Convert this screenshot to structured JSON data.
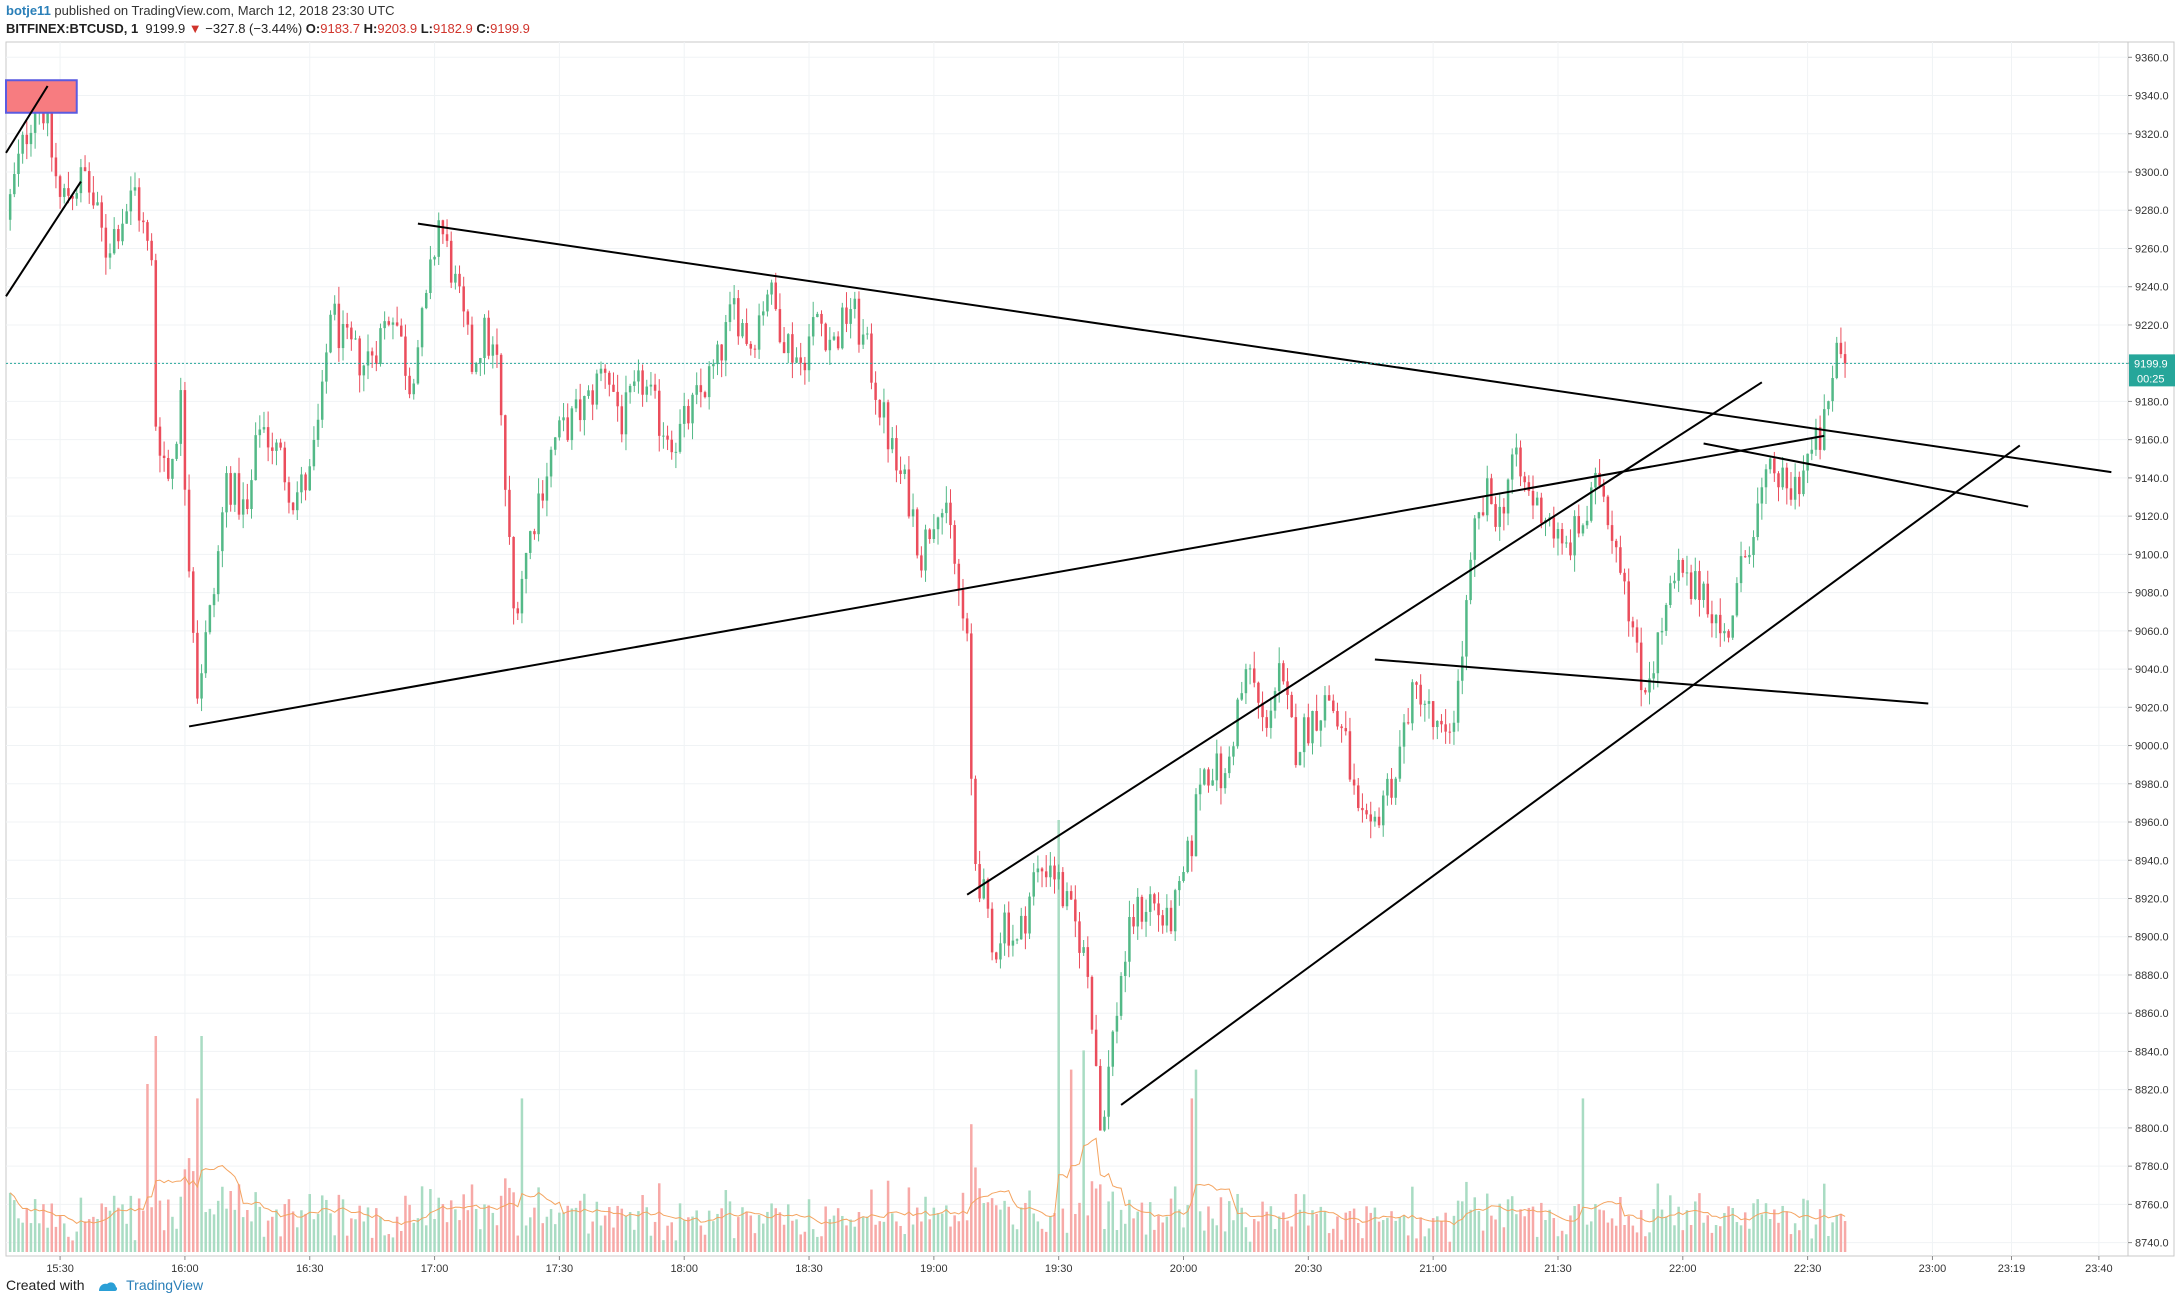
{
  "header": {
    "user": "botje11",
    "published_text": "published on TradingView.com, March 12, 2018 23:30 UTC",
    "symbol": "BITFINEX:BTCUSD, 1",
    "last": "9199.9",
    "change_arrow": "▼",
    "change": "−327.8 (−3.44%)",
    "o_label": "O:",
    "o_value": "9183.7",
    "h_label": "H:",
    "h_value": "9203.9",
    "l_label": "L:",
    "l_value": "9182.9",
    "c_label": "C:",
    "c_value": "9199.9"
  },
  "footer": {
    "created_with": "Created with",
    "brand": "TradingView",
    "logo_icon": "tradingview-logo-icon"
  },
  "colors": {
    "up": "#53b987",
    "down": "#eb4d5c",
    "vol_up": "#a9dcc3",
    "vol_down": "#f7a9a7",
    "ma_line": "#f4a460",
    "last_price_bg": "#26a69a",
    "drawing": "#000000",
    "zone_fill": "#f77c80",
    "zone_border": "#5b5be0"
  },
  "chart_data": {
    "type": "candlestick",
    "interval": "1 minute",
    "y_ticks": [
      8740,
      8760,
      8780,
      8800,
      8820,
      8840,
      8860,
      8880,
      8900,
      8920,
      8940,
      8960,
      8980,
      9000,
      9020,
      9040,
      9060,
      9080,
      9100,
      9120,
      9140,
      9160,
      9180,
      9200,
      9220,
      9240,
      9260,
      9280,
      9300,
      9320,
      9340,
      9360
    ],
    "y_tick_labels": [
      "8740.0",
      "8760.0",
      "8780.0",
      "8800.0",
      "8820.0",
      "8840.0",
      "8860.0",
      "8880.0",
      "8900.0",
      "8920.0",
      "8940.0",
      "8960.0",
      "8980.0",
      "9000.0",
      "9020.0",
      "9040.0",
      "9060.0",
      "9080.0",
      "9100.0",
      "9120.0",
      "9140.0",
      "9160.0",
      "9180.0",
      "9200.0",
      "9220.0",
      "9240.0",
      "9260.0",
      "9280.0",
      "9300.0",
      "9320.0",
      "9340.0",
      "9360.0"
    ],
    "ylim": [
      8733,
      9368
    ],
    "x_start_minute": 917,
    "x_end_minute": 1427,
    "x_ticks": [
      {
        "label": "15:30",
        "minute": 930
      },
      {
        "label": "16:00",
        "minute": 960
      },
      {
        "label": "16:30",
        "minute": 990
      },
      {
        "label": "17:00",
        "minute": 1020
      },
      {
        "label": "17:30",
        "minute": 1050
      },
      {
        "label": "18:00",
        "minute": 1080
      },
      {
        "label": "18:30",
        "minute": 1110
      },
      {
        "label": "19:00",
        "minute": 1140
      },
      {
        "label": "19:30",
        "minute": 1170
      },
      {
        "label": "20:00",
        "minute": 1200
      },
      {
        "label": "20:30",
        "minute": 1230
      },
      {
        "label": "21:00",
        "minute": 1260
      },
      {
        "label": "21:30",
        "minute": 1290
      },
      {
        "label": "22:00",
        "minute": 1320
      },
      {
        "label": "22:30",
        "minute": 1350
      },
      {
        "label": "23:00",
        "minute": 1380
      },
      {
        "label": "23:19",
        "minute": 1399
      },
      {
        "label": "23:40",
        "minute": 1420
      }
    ],
    "last_price": 9199.9,
    "last_price_label": "9199.9",
    "countdown_label": "00:25",
    "anchors": [
      [
        917,
        9275
      ],
      [
        920,
        9305
      ],
      [
        925,
        9345
      ],
      [
        930,
        9285
      ],
      [
        936,
        9298
      ],
      [
        941,
        9260
      ],
      [
        948,
        9290
      ],
      [
        952,
        9250
      ],
      [
        953,
        9170
      ],
      [
        956,
        9140
      ],
      [
        959,
        9180
      ],
      [
        961,
        9100
      ],
      [
        963,
        9030
      ],
      [
        967,
        9080
      ],
      [
        970,
        9140
      ],
      [
        975,
        9120
      ],
      [
        978,
        9170
      ],
      [
        983,
        9150
      ],
      [
        986,
        9130
      ],
      [
        990,
        9140
      ],
      [
        993,
        9180
      ],
      [
        995,
        9230
      ],
      [
        998,
        9210
      ],
      [
        1003,
        9200
      ],
      [
        1006,
        9210
      ],
      [
        1010,
        9230
      ],
      [
        1014,
        9190
      ],
      [
        1018,
        9230
      ],
      [
        1021,
        9275
      ],
      [
        1024,
        9250
      ],
      [
        1029,
        9200
      ],
      [
        1032,
        9215
      ],
      [
        1035,
        9200
      ],
      [
        1039,
        9070
      ],
      [
        1041,
        9090
      ],
      [
        1045,
        9130
      ],
      [
        1049,
        9160
      ],
      [
        1053,
        9170
      ],
      [
        1057,
        9180
      ],
      [
        1061,
        9200
      ],
      [
        1065,
        9170
      ],
      [
        1070,
        9190
      ],
      [
        1074,
        9170
      ],
      [
        1078,
        9160
      ],
      [
        1083,
        9180
      ],
      [
        1088,
        9200
      ],
      [
        1092,
        9230
      ],
      [
        1096,
        9210
      ],
      [
        1100,
        9240
      ],
      [
        1104,
        9215
      ],
      [
        1108,
        9200
      ],
      [
        1112,
        9225
      ],
      [
        1116,
        9210
      ],
      [
        1120,
        9230
      ],
      [
        1124,
        9205
      ],
      [
        1128,
        9170
      ],
      [
        1131,
        9145
      ],
      [
        1134,
        9130
      ],
      [
        1137,
        9100
      ],
      [
        1141,
        9130
      ],
      [
        1144,
        9110
      ],
      [
        1146,
        9080
      ],
      [
        1148,
        9050
      ],
      [
        1149,
        8980
      ],
      [
        1150,
        8940
      ],
      [
        1152,
        8920
      ],
      [
        1154,
        8890
      ],
      [
        1157,
        8910
      ],
      [
        1160,
        8895
      ],
      [
        1164,
        8930
      ],
      [
        1168,
        8940
      ],
      [
        1172,
        8915
      ],
      [
        1175,
        8900
      ],
      [
        1177,
        8880
      ],
      [
        1178,
        8860
      ],
      [
        1179,
        8835
      ],
      [
        1180,
        8800
      ],
      [
        1182,
        8830
      ],
      [
        1185,
        8880
      ],
      [
        1188,
        8910
      ],
      [
        1192,
        8920
      ],
      [
        1196,
        8905
      ],
      [
        1199,
        8920
      ],
      [
        1202,
        8950
      ],
      [
        1204,
        8985
      ],
      [
        1207,
        8990
      ],
      [
        1210,
        8980
      ],
      [
        1213,
        9020
      ],
      [
        1216,
        9040
      ],
      [
        1219,
        9010
      ],
      [
        1223,
        9035
      ],
      [
        1227,
        9000
      ],
      [
        1231,
        9015
      ],
      [
        1235,
        9025
      ],
      [
        1239,
        9000
      ],
      [
        1242,
        8960
      ],
      [
        1245,
        8950
      ],
      [
        1248,
        8975
      ],
      [
        1251,
        8985
      ],
      [
        1254,
        9020
      ],
      [
        1257,
        9030
      ],
      [
        1260,
        9010
      ],
      [
        1263,
        9000
      ],
      [
        1266,
        9030
      ],
      [
        1268,
        9070
      ],
      [
        1270,
        9110
      ],
      [
        1273,
        9130
      ],
      [
        1276,
        9120
      ],
      [
        1279,
        9150
      ],
      [
        1282,
        9135
      ],
      [
        1285,
        9125
      ],
      [
        1288,
        9120
      ],
      [
        1291,
        9100
      ],
      [
        1294,
        9110
      ],
      [
        1297,
        9120
      ],
      [
        1300,
        9140
      ],
      [
        1303,
        9115
      ],
      [
        1306,
        9090
      ],
      [
        1308,
        9060
      ],
      [
        1310,
        9030
      ],
      [
        1313,
        9045
      ],
      [
        1316,
        9070
      ],
      [
        1319,
        9090
      ],
      [
        1322,
        9080
      ],
      [
        1325,
        9085
      ],
      [
        1328,
        9065
      ],
      [
        1330,
        9055
      ],
      [
        1333,
        9080
      ],
      [
        1336,
        9110
      ],
      [
        1339,
        9130
      ],
      [
        1342,
        9145
      ],
      [
        1345,
        9130
      ],
      [
        1348,
        9140
      ],
      [
        1350,
        9150
      ],
      [
        1353,
        9160
      ],
      [
        1355,
        9175
      ],
      [
        1357,
        9210
      ],
      [
        1359,
        9200
      ]
    ],
    "volume_spikes": [
      [
        951,
        0.35
      ],
      [
        953,
        0.45
      ],
      [
        963,
        0.32
      ],
      [
        964,
        0.45
      ],
      [
        1041,
        0.32
      ],
      [
        1170,
        0.9
      ],
      [
        1173,
        0.38
      ],
      [
        1176,
        0.42
      ],
      [
        1202,
        0.32
      ],
      [
        1203,
        0.38
      ],
      [
        1296,
        0.32
      ]
    ],
    "drawings": [
      {
        "name": "resistance-line-descending",
        "p1": [
          1016,
          9273
        ],
        "p2": [
          1423,
          9143
        ]
      },
      {
        "name": "support-line-ascending",
        "p1": [
          961,
          9010
        ],
        "p2": [
          1354,
          9162
        ]
      },
      {
        "name": "upper-channel-line",
        "p1": [
          1148,
          8922
        ],
        "p2": [
          1339,
          9190
        ]
      },
      {
        "name": "lower-channel-line",
        "p1": [
          1185,
          8812
        ],
        "p2": [
          1401,
          9157
        ]
      },
      {
        "name": "flag-top-line",
        "p1": [
          1246,
          9045
        ],
        "p2": [
          1379,
          9022
        ]
      },
      {
        "name": "small-descending-line",
        "p1": [
          1325,
          9158
        ],
        "p2": [
          1403,
          9125
        ]
      },
      {
        "name": "left-wedge-upper",
        "p1": [
          917,
          9310
        ],
        "p2": [
          927,
          9345
        ]
      },
      {
        "name": "left-wedge-lower",
        "p1": [
          917,
          9235
        ],
        "p2": [
          935,
          9295
        ]
      }
    ],
    "zones": [
      {
        "name": "supply-zone",
        "x_minutes": [
          917,
          934
        ],
        "y_range": [
          9331,
          9348
        ]
      }
    ]
  }
}
